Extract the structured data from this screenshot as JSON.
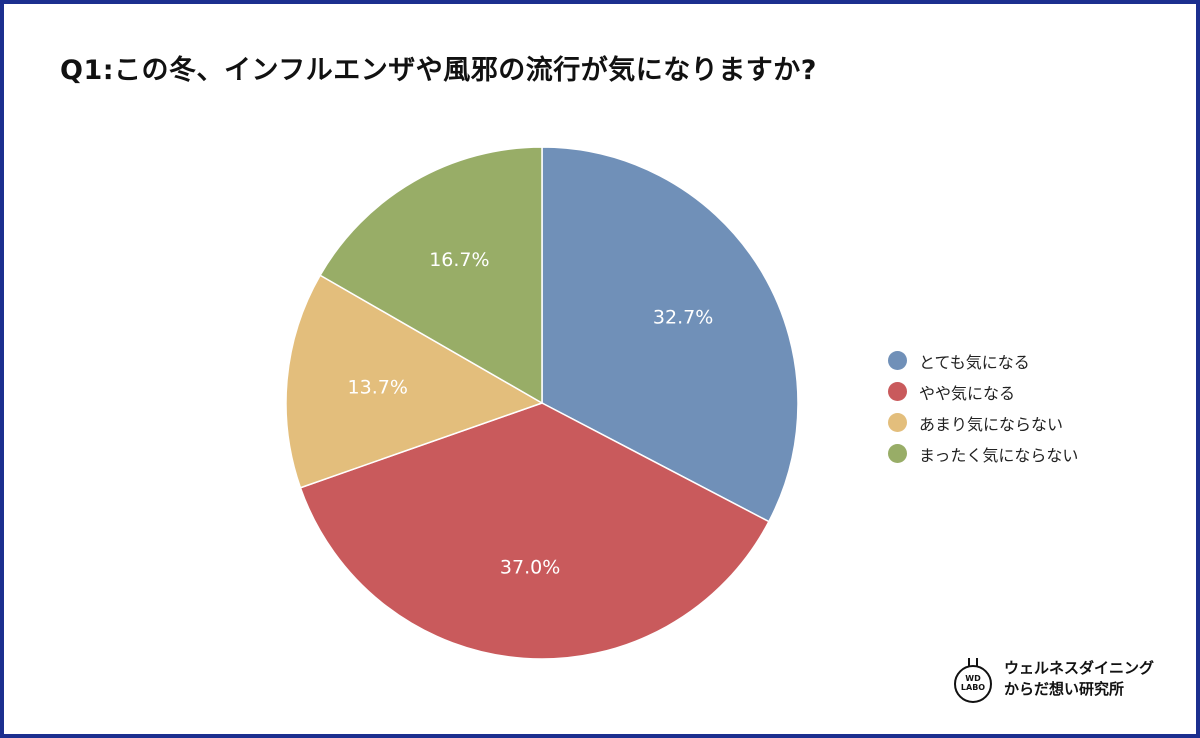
{
  "title": "Q1:この冬、インフルエンザや風邪の流行が気になりますか?",
  "chart_data": {
    "type": "pie",
    "title": "Q1:この冬、インフルエンザや風邪の流行が気になりますか?",
    "legend_position": "right",
    "slices": [
      {
        "label": "とても気になる",
        "value": 32.7,
        "display": "32.7%",
        "color": "#7090b8"
      },
      {
        "label": "やや気になる",
        "value": 37.0,
        "display": "37.0%",
        "color": "#c95a5c"
      },
      {
        "label": "あまり気にならない",
        "value": 13.7,
        "display": "13.7%",
        "color": "#e3be7c"
      },
      {
        "label": "まったく気にならない",
        "value": 16.7,
        "display": "16.7%",
        "color": "#98ad67"
      }
    ]
  },
  "logo": {
    "badge_line1": "WD",
    "badge_line2": "LABO",
    "line1": "ウェルネスダイニング",
    "line2": "からだ想い研究所"
  }
}
